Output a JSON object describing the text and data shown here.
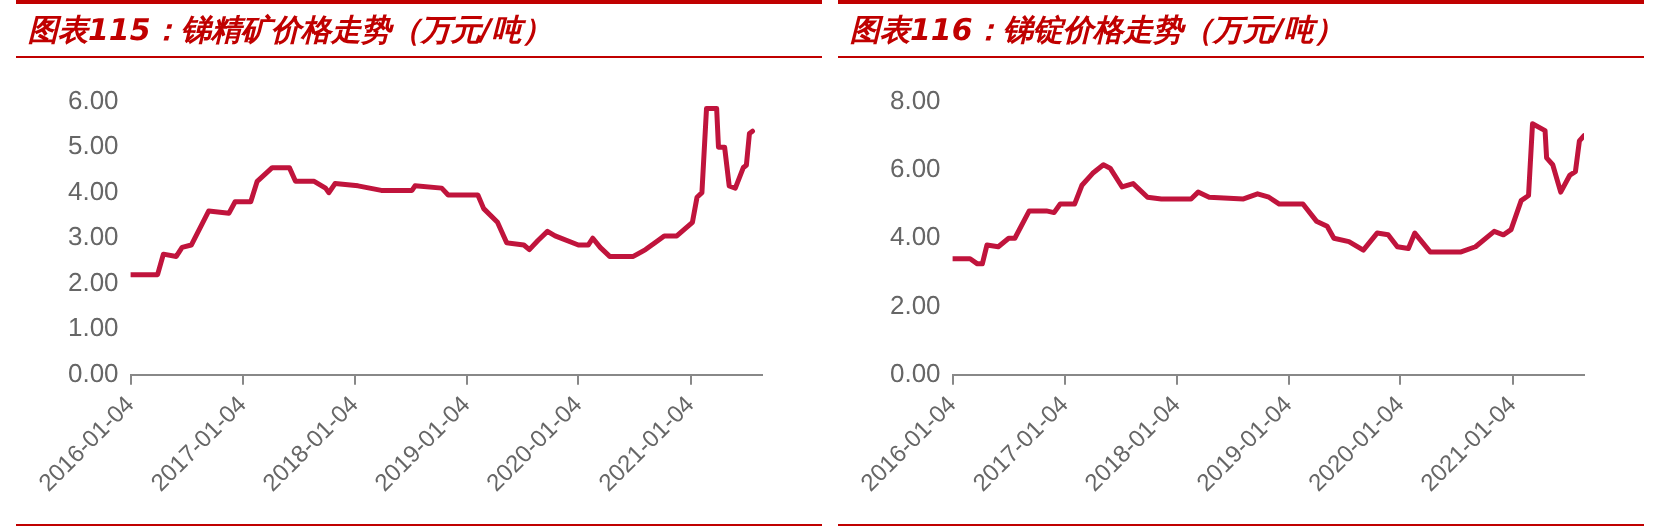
{
  "chart_data": [
    {
      "type": "line",
      "title": "图表115：锑精矿价格走势（万元/吨）",
      "xlim": [
        "2016-01-04",
        "2021-08-25"
      ],
      "xticks": [
        "2016-01-04",
        "2017-01-04",
        "2018-01-04",
        "2019-01-04",
        "2020-01-04",
        "2021-01-04"
      ],
      "ylim": [
        0,
        6
      ],
      "yticks": [
        {
          "value": 0,
          "label": "0.00"
        },
        {
          "value": 1,
          "label": "1.00"
        },
        {
          "value": 2,
          "label": "2.00"
        },
        {
          "value": 3,
          "label": "3.00"
        },
        {
          "value": 4,
          "label": "4.00"
        },
        {
          "value": 5,
          "label": "5.00"
        },
        {
          "value": 6,
          "label": "6.00"
        }
      ],
      "grid": false,
      "legend": false,
      "marker": "none",
      "line_style": "solid",
      "series": [
        {
          "color": "#c0143c",
          "x": [
            "2016-01-04",
            "2016-04-01",
            "2016-04-20",
            "2016-06-01",
            "2016-06-20",
            "2016-07-20",
            "2016-09-15",
            "2016-11-20",
            "2016-12-10",
            "2017-01-30",
            "2017-02-20",
            "2017-04-10",
            "2017-06-05",
            "2017-06-25",
            "2017-08-25",
            "2017-10-01",
            "2017-10-12",
            "2017-11-01",
            "2018-01-15",
            "2018-04-01",
            "2018-07-10",
            "2018-07-20",
            "2018-10-15",
            "2018-11-05",
            "2019-02-10",
            "2019-03-01",
            "2019-04-15",
            "2019-05-15",
            "2019-07-10",
            "2019-07-28",
            "2019-08-25",
            "2019-09-25",
            "2019-10-20",
            "2020-01-04",
            "2020-02-05",
            "2020-02-20",
            "2020-03-15",
            "2020-04-15",
            "2020-07-01",
            "2020-08-10",
            "2020-09-20",
            "2020-10-10",
            "2020-11-20",
            "2021-01-10",
            "2021-01-25",
            "2021-02-10",
            "2021-02-25",
            "2021-03-30",
            "2021-04-05",
            "2021-04-25",
            "2021-05-10",
            "2021-05-30",
            "2021-06-25",
            "2021-07-05",
            "2021-07-15",
            "2021-07-25"
          ],
          "values": [
            2.2,
            2.2,
            2.65,
            2.6,
            2.8,
            2.85,
            3.6,
            3.55,
            3.8,
            3.8,
            4.25,
            4.55,
            4.55,
            4.25,
            4.25,
            4.1,
            4.0,
            4.2,
            4.15,
            4.05,
            4.05,
            4.15,
            4.1,
            3.95,
            3.95,
            3.65,
            3.35,
            2.9,
            2.85,
            2.75,
            2.95,
            3.15,
            3.05,
            2.85,
            2.85,
            3.0,
            2.8,
            2.6,
            2.6,
            2.75,
            2.95,
            3.05,
            3.05,
            3.35,
            3.9,
            4.0,
            5.85,
            5.85,
            5.0,
            5.0,
            4.15,
            4.1,
            4.55,
            4.6,
            5.3,
            5.35
          ]
        }
      ]
    },
    {
      "type": "line",
      "title": "图表116：锑锭价格走势（万元/吨）",
      "xlim": [
        "2016-01-04",
        "2021-08-25"
      ],
      "xticks": [
        "2016-01-04",
        "2017-01-04",
        "2018-01-04",
        "2019-01-04",
        "2020-01-04",
        "2021-01-04"
      ],
      "ylim": [
        0,
        8
      ],
      "yticks": [
        {
          "value": 0,
          "label": "0.00"
        },
        {
          "value": 2,
          "label": "2.00"
        },
        {
          "value": 4,
          "label": "4.00"
        },
        {
          "value": 6,
          "label": "6.00"
        },
        {
          "value": 8,
          "label": "8.00"
        }
      ],
      "grid": false,
      "legend": false,
      "marker": "none",
      "line_style": "solid",
      "series": [
        {
          "color": "#c0143c",
          "x": [
            "2016-01-04",
            "2016-03-01",
            "2016-03-25",
            "2016-04-10",
            "2016-04-25",
            "2016-06-01",
            "2016-07-05",
            "2016-07-25",
            "2016-09-10",
            "2016-11-05",
            "2016-11-30",
            "2016-12-20",
            "2017-02-05",
            "2017-03-01",
            "2017-04-05",
            "2017-05-10",
            "2017-06-01",
            "2017-07-10",
            "2017-08-15",
            "2017-10-01",
            "2017-11-15",
            "2018-02-20",
            "2018-03-15",
            "2018-04-20",
            "2018-08-10",
            "2018-09-25",
            "2018-11-01",
            "2018-12-05",
            "2019-02-20",
            "2019-04-05",
            "2019-05-10",
            "2019-06-01",
            "2019-07-20",
            "2019-09-05",
            "2019-10-20",
            "2019-11-25",
            "2019-12-25",
            "2020-01-30",
            "2020-02-20",
            "2020-04-10",
            "2020-07-20",
            "2020-09-05",
            "2020-11-05",
            "2020-12-05",
            "2020-12-30",
            "2021-02-01",
            "2021-02-25",
            "2021-03-10",
            "2021-04-20",
            "2021-04-25",
            "2021-05-15",
            "2021-06-10",
            "2021-07-10",
            "2021-07-28",
            "2021-08-10",
            "2021-08-25"
          ],
          "values": [
            3.4,
            3.4,
            3.25,
            3.25,
            3.8,
            3.75,
            4.0,
            4.0,
            4.8,
            4.8,
            4.75,
            5.0,
            5.0,
            5.55,
            5.9,
            6.15,
            6.05,
            5.5,
            5.6,
            5.2,
            5.15,
            5.15,
            5.35,
            5.2,
            5.15,
            5.3,
            5.2,
            5.0,
            5.0,
            4.5,
            4.35,
            4.0,
            3.9,
            3.65,
            4.15,
            4.1,
            3.75,
            3.7,
            4.15,
            3.6,
            3.6,
            3.75,
            4.2,
            4.1,
            4.25,
            5.1,
            5.25,
            7.35,
            7.15,
            6.35,
            6.15,
            5.35,
            5.85,
            5.95,
            6.85,
            7.0
          ]
        }
      ]
    }
  ]
}
